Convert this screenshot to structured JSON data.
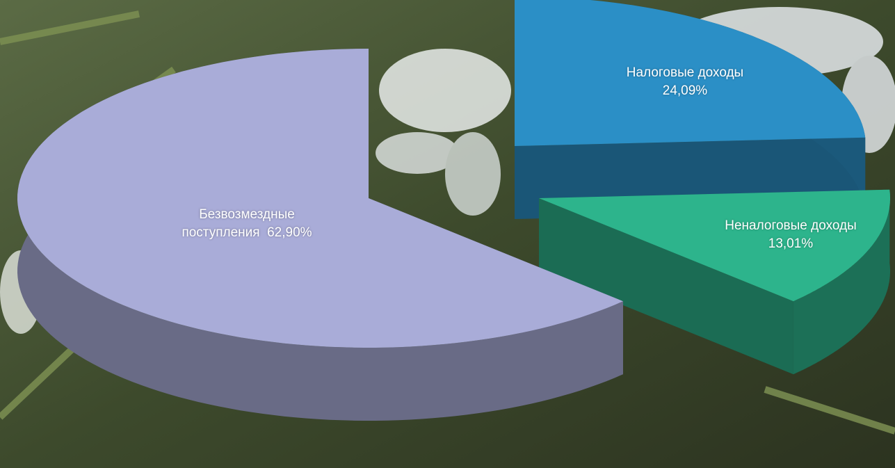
{
  "chart_data": {
    "type": "pie",
    "categories": [
      "Налоговые доходы",
      "Неналоговые доходы",
      "Безвозмездные поступления"
    ],
    "values": [
      24.09,
      13.01,
      62.9
    ],
    "value_labels": [
      "24,09%",
      "13,01%",
      "62,90%"
    ],
    "colors": [
      "#2b8fc6",
      "#2db48c",
      "#a9acd8"
    ]
  }
}
